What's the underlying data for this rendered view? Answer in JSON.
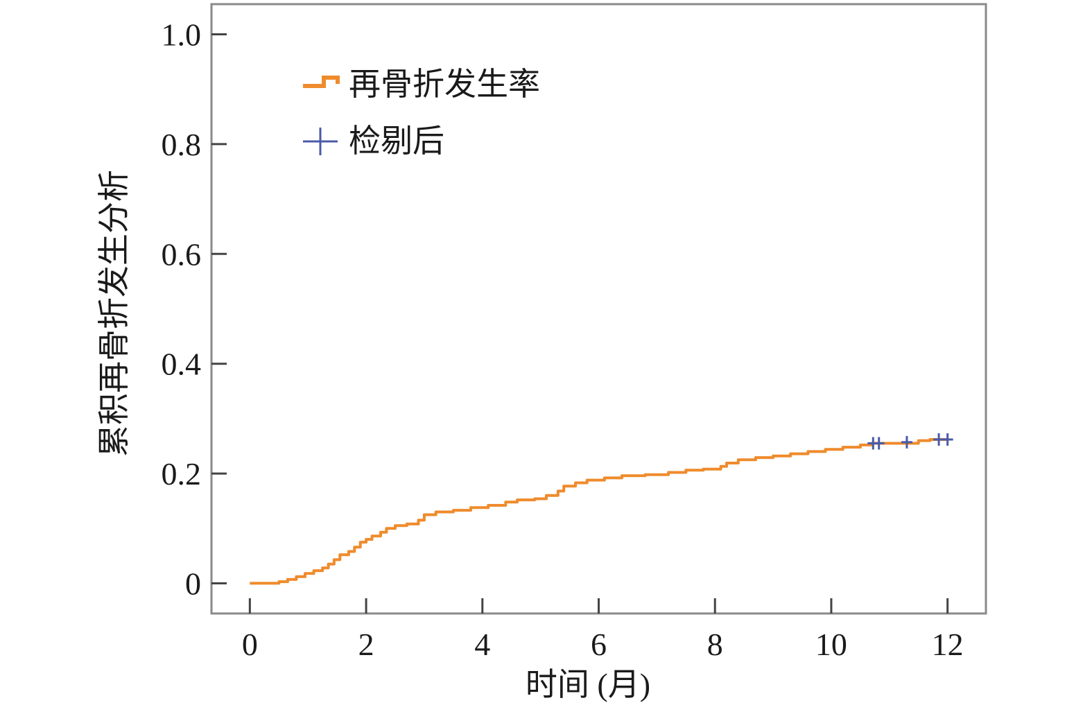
{
  "chart_data": {
    "type": "line",
    "subtype": "step",
    "title": "",
    "xlabel": "时间 (月)",
    "ylabel": "累积再骨折发生分析",
    "xlim": [
      -0.66,
      12.66
    ],
    "ylim": [
      -0.055,
      1.055
    ],
    "x_ticks": [
      0,
      2,
      4,
      6,
      8,
      10,
      12
    ],
    "x_tick_labels": [
      "0",
      "2",
      "4",
      "6",
      "8",
      "10",
      "12"
    ],
    "y_ticks": [
      0,
      0.2,
      0.4,
      0.6,
      0.8,
      1.0
    ],
    "y_tick_labels": [
      "0",
      "0.2",
      "0.4",
      "0.6",
      "0.8",
      "1.0"
    ],
    "grid": false,
    "legend_position": "top-left",
    "legend": [
      {
        "label": "再骨折发生率",
        "marker": "step-line",
        "color": "#ef8b2c"
      },
      {
        "label": "检剔后",
        "marker": "plus",
        "color": "#4b5aa8"
      }
    ],
    "series": [
      {
        "name": "再骨折发生率",
        "color": "#ef8b2c",
        "step_points": [
          [
            0,
            0
          ],
          [
            0.5,
            0.003
          ],
          [
            0.65,
            0.007
          ],
          [
            0.8,
            0.012
          ],
          [
            0.95,
            0.018
          ],
          [
            1.1,
            0.023
          ],
          [
            1.25,
            0.028
          ],
          [
            1.35,
            0.035
          ],
          [
            1.45,
            0.043
          ],
          [
            1.55,
            0.052
          ],
          [
            1.7,
            0.058
          ],
          [
            1.8,
            0.066
          ],
          [
            1.9,
            0.075
          ],
          [
            2.0,
            0.08
          ],
          [
            2.1,
            0.086
          ],
          [
            2.25,
            0.093
          ],
          [
            2.35,
            0.1
          ],
          [
            2.5,
            0.105
          ],
          [
            2.7,
            0.108
          ],
          [
            2.9,
            0.115
          ],
          [
            3.0,
            0.125
          ],
          [
            3.2,
            0.13
          ],
          [
            3.5,
            0.133
          ],
          [
            3.8,
            0.138
          ],
          [
            4.1,
            0.142
          ],
          [
            4.4,
            0.148
          ],
          [
            4.6,
            0.152
          ],
          [
            4.9,
            0.154
          ],
          [
            5.1,
            0.16
          ],
          [
            5.3,
            0.168
          ],
          [
            5.4,
            0.177
          ],
          [
            5.6,
            0.183
          ],
          [
            5.8,
            0.188
          ],
          [
            6.1,
            0.192
          ],
          [
            6.4,
            0.196
          ],
          [
            6.8,
            0.198
          ],
          [
            7.2,
            0.202
          ],
          [
            7.5,
            0.206
          ],
          [
            7.8,
            0.208
          ],
          [
            8.1,
            0.213
          ],
          [
            8.2,
            0.219
          ],
          [
            8.4,
            0.225
          ],
          [
            8.7,
            0.229
          ],
          [
            9.0,
            0.232
          ],
          [
            9.3,
            0.236
          ],
          [
            9.6,
            0.24
          ],
          [
            9.9,
            0.244
          ],
          [
            10.2,
            0.248
          ],
          [
            10.5,
            0.252
          ],
          [
            10.7,
            0.255
          ],
          [
            11.5,
            0.26
          ],
          [
            11.7,
            0.262
          ],
          [
            12.0,
            0.262
          ]
        ]
      },
      {
        "name": "检剔后",
        "color": "#4b5aa8",
        "marker": "plus",
        "points": [
          [
            10.72,
            0.255
          ],
          [
            10.82,
            0.255
          ],
          [
            11.3,
            0.257
          ],
          [
            11.85,
            0.262
          ],
          [
            12.0,
            0.262
          ]
        ]
      }
    ]
  }
}
